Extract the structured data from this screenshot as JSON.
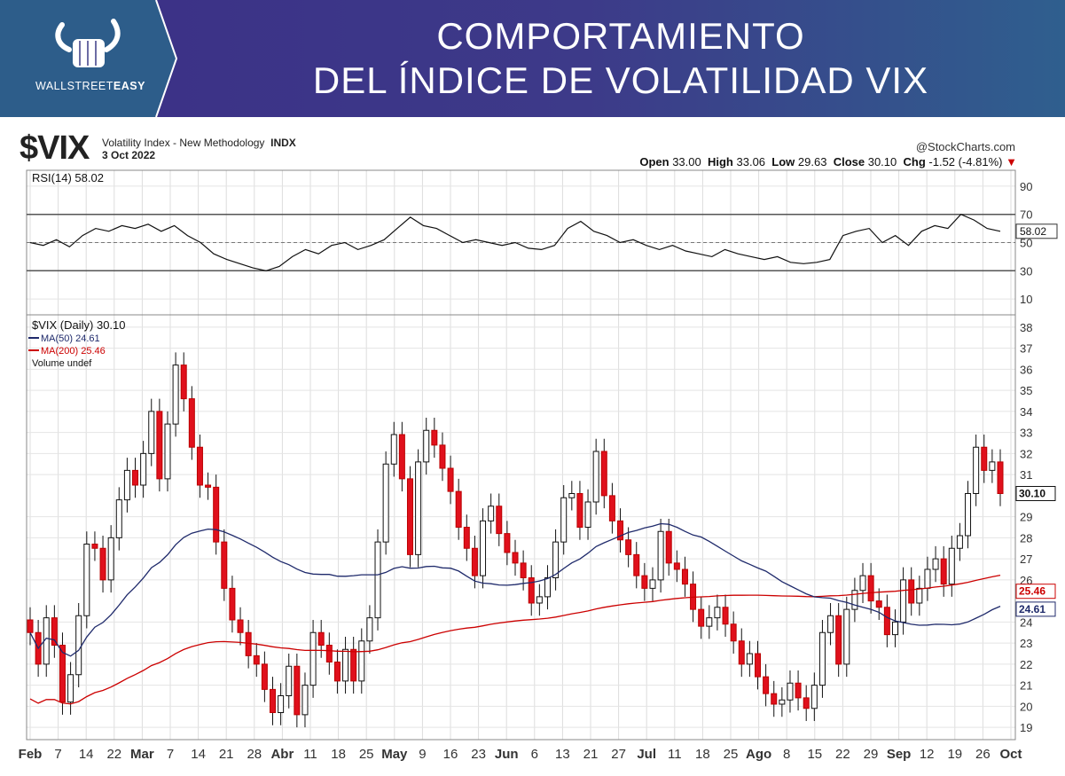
{
  "header": {
    "brand_light": "WALLSTREET",
    "brand_bold": "EASY",
    "title_line1": "COMPORTAMIENTO",
    "title_line2": "DEL ÍNDICE DE VOLATILIDAD VIX"
  },
  "chart_header": {
    "symbol": "$VIX",
    "description": "Volatility Index - New Methodology",
    "exchange": "INDX",
    "date": "3 Oct 2022",
    "credit": "@StockCharts.com",
    "open_label": "Open",
    "open": "33.00",
    "high_label": "High",
    "high": "33.06",
    "low_label": "Low",
    "low": "29.63",
    "close_label": "Close",
    "close": "30.10",
    "chg_label": "Chg",
    "chg": "-1.52 (-4.81%)"
  },
  "chart_data": [
    {
      "type": "line",
      "panel": "RSI",
      "legend": "RSI(14) 58.02",
      "current_label": "58.02",
      "ylim": [
        0,
        100
      ],
      "y_ticks": [
        90,
        70,
        50,
        30,
        10
      ],
      "reference_lines": [
        70,
        30
      ],
      "values": [
        50,
        48,
        52,
        47,
        55,
        60,
        58,
        62,
        60,
        63,
        58,
        62,
        55,
        50,
        42,
        38,
        35,
        32,
        30,
        33,
        40,
        45,
        42,
        48,
        50,
        45,
        48,
        52,
        60,
        68,
        62,
        60,
        55,
        50,
        52,
        50,
        48,
        50,
        46,
        45,
        48,
        60,
        65,
        58,
        55,
        50,
        52,
        48,
        45,
        48,
        44,
        42,
        40,
        45,
        42,
        40,
        38,
        40,
        36,
        35,
        36,
        38,
        55,
        58,
        60,
        50,
        55,
        48,
        58,
        62,
        60,
        70,
        66,
        60,
        58
      ]
    },
    {
      "type": "candlestick",
      "panel": "price",
      "legend": [
        "$VIX (Daily) 30.10",
        "MA(50) 24.61",
        "MA(200) 25.46",
        "Volume undef"
      ],
      "ylim": [
        18.5,
        38.5
      ],
      "y_ticks": [
        38,
        37,
        36,
        35,
        34,
        33,
        32,
        31,
        29,
        28,
        27,
        26,
        24,
        23,
        22,
        21,
        20,
        19
      ],
      "last_close_label": "30.10",
      "ma200_label": "25.46",
      "ma50_label": "24.61",
      "x_labels": [
        "Feb",
        "7",
        "14",
        "22",
        "Mar",
        "7",
        "14",
        "21",
        "28",
        "Abr",
        "11",
        "18",
        "25",
        "May",
        "9",
        "16",
        "23",
        "Jun",
        "6",
        "13",
        "21",
        "27",
        "Jul",
        "11",
        "18",
        "25",
        "Ago",
        "8",
        "15",
        "22",
        "29",
        "Sep",
        "12",
        "19",
        "26",
        "Oct"
      ],
      "x_label_bold": [
        "Feb",
        "Mar",
        "Abr",
        "May",
        "Jun",
        "Jul",
        "Ago",
        "Sep",
        "Oct"
      ],
      "closes": [
        23.5,
        22.0,
        24.2,
        22.9,
        20.2,
        21.5,
        24.3,
        27.7,
        27.5,
        26.0,
        28.0,
        29.8,
        31.2,
        30.5,
        32.0,
        34.0,
        30.8,
        33.4,
        36.2,
        34.6,
        32.3,
        30.5,
        30.4,
        27.8,
        25.6,
        24.1,
        23.5,
        22.4,
        22.0,
        20.8,
        19.7,
        20.5,
        21.9,
        19.6,
        21.0,
        23.5,
        22.9,
        22.1,
        21.2,
        22.7,
        21.2,
        23.1,
        24.2,
        27.8,
        31.5,
        32.9,
        30.8,
        27.2,
        31.6,
        33.1,
        32.4,
        31.3,
        30.2,
        28.5,
        27.5,
        26.2,
        28.8,
        29.5,
        28.2,
        27.3,
        26.8,
        26.1,
        24.9,
        25.2,
        26.1,
        27.8,
        29.9,
        30.1,
        28.5,
        29.7,
        32.1,
        30.0,
        28.8,
        27.9,
        27.2,
        26.2,
        25.6,
        26.0,
        28.3,
        26.8,
        26.5,
        25.8,
        24.6,
        23.8,
        24.2,
        24.7,
        23.9,
        23.1,
        22.0,
        22.5,
        21.4,
        20.6,
        20.1,
        20.3,
        21.1,
        20.4,
        19.9,
        21.0,
        23.5,
        24.3,
        22.0,
        24.6,
        25.5,
        26.2,
        25.0,
        24.7,
        23.4,
        24.0,
        26.0,
        24.9,
        25.6,
        26.5,
        27.0,
        25.8,
        27.5,
        28.1,
        30.1,
        32.3,
        31.2,
        31.6,
        30.1
      ]
    }
  ]
}
